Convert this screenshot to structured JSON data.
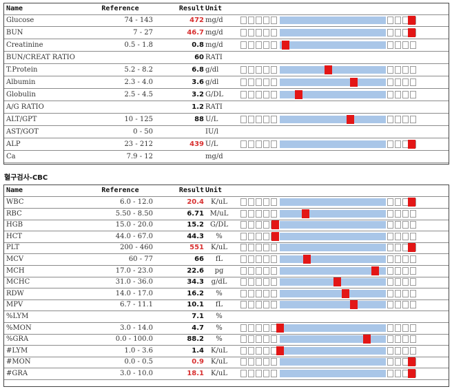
{
  "headers": {
    "name": "Name",
    "reference": "Reference",
    "result": "Result",
    "unit": "Unit"
  },
  "chemistry": {
    "rows": [
      {
        "name": "Glucose",
        "reference": "74 - 143",
        "result": "472",
        "unit": "mg/d",
        "flag": "high",
        "level": 1.0
      },
      {
        "name": "BUN",
        "reference": "7 - 27",
        "result": "46.7",
        "unit": "mg/d",
        "flag": "high",
        "level": 1.0
      },
      {
        "name": "Creatinine",
        "reference": "0.5 - 1.8",
        "result": "0.8",
        "unit": "mg/d",
        "flag": "normal",
        "level": 0.09
      },
      {
        "name": "BUN/CREAT RATIO",
        "reference": "",
        "result": "60",
        "unit": "RATI",
        "flag": "normal",
        "level": null
      },
      {
        "name": "T.Protein",
        "reference": "5.2 - 8.2",
        "result": "6.8",
        "unit": "g/dl",
        "flag": "normal",
        "level": 0.45
      },
      {
        "name": "Albumin",
        "reference": "2.3 - 4.0",
        "result": "3.6",
        "unit": "g/dl",
        "flag": "normal",
        "level": 0.67
      },
      {
        "name": "Globulin",
        "reference": "2.5 - 4.5",
        "result": "3.2",
        "unit": "G/DL",
        "flag": "normal",
        "level": 0.2
      },
      {
        "name": "A/G RATIO",
        "reference": "",
        "result": "1.2",
        "unit": "RATI",
        "flag": "normal",
        "level": null
      },
      {
        "name": "ALT/GPT",
        "reference": "10 - 125",
        "result": "88",
        "unit": "U/L",
        "flag": "normal",
        "level": 0.64
      },
      {
        "name": "AST/GOT",
        "reference": "0 - 50",
        "result": "",
        "unit": "IU/l",
        "flag": "normal",
        "level": null
      },
      {
        "name": "ALP",
        "reference": "23 - 212",
        "result": "439",
        "unit": "U/L",
        "flag": "high",
        "level": 1.0
      },
      {
        "name": "Ca",
        "reference": "7.9 - 12",
        "result": "",
        "unit": "mg/d",
        "flag": "normal",
        "level": null
      }
    ]
  },
  "cbc": {
    "title": "혈구검사-CBC",
    "rows": [
      {
        "name": "WBC",
        "reference": "6.0 - 12.0",
        "result": "20.4",
        "unit": "K/uL",
        "flag": "high",
        "level": 1.0
      },
      {
        "name": "RBC",
        "reference": "5.50 - 8.50",
        "result": "6.71",
        "unit": "M/uL",
        "flag": "normal",
        "level": 0.26
      },
      {
        "name": "HGB",
        "reference": "15.0 - 20.0",
        "result": "15.2",
        "unit": "G/DL",
        "flag": "normal",
        "level": 0.0
      },
      {
        "name": "HCT",
        "reference": "44.0 - 67.0",
        "result": "44.3",
        "unit": "%",
        "flag": "normal",
        "level": 0.0
      },
      {
        "name": "PLT",
        "reference": "200 - 460",
        "result": "551",
        "unit": "K/uL",
        "flag": "high",
        "level": 1.0
      },
      {
        "name": "MCV",
        "reference": "60 - 77",
        "result": "66",
        "unit": "fL",
        "flag": "normal",
        "level": 0.27
      },
      {
        "name": "MCH",
        "reference": "17.0 - 23.0",
        "result": "22.6",
        "unit": "pg",
        "flag": "normal",
        "level": 0.85
      },
      {
        "name": "MCHC",
        "reference": "31.0 - 36.0",
        "result": "34.3",
        "unit": "g/dL",
        "flag": "normal",
        "level": 0.53
      },
      {
        "name": "RDW",
        "reference": "14.0 - 17.0",
        "result": "16.2",
        "unit": "%",
        "flag": "normal",
        "level": 0.6
      },
      {
        "name": "MPV",
        "reference": "6.7 - 11.1",
        "result": "10.1",
        "unit": "fL",
        "flag": "normal",
        "level": 0.67
      },
      {
        "name": "%LYM",
        "reference": "",
        "result": "7.1",
        "unit": "%",
        "flag": "normal",
        "level": null
      },
      {
        "name": "%MON",
        "reference": "3.0 - 14.0",
        "result": "4.7",
        "unit": "%",
        "flag": "normal",
        "level": 0.04
      },
      {
        "name": "%GRA",
        "reference": "0.0 - 100.0",
        "result": "88.2",
        "unit": "%",
        "flag": "normal",
        "level": 0.78
      },
      {
        "name": "#LYM",
        "reference": "1.0 - 3.6",
        "result": "1.4",
        "unit": "K/uL",
        "flag": "normal",
        "level": 0.04
      },
      {
        "name": "#MON",
        "reference": "0.0 - 0.5",
        "result": "0.9",
        "unit": "K/uL",
        "flag": "high",
        "level": 1.0
      },
      {
        "name": "#GRA",
        "reference": "3.0 - 10.0",
        "result": "18.1",
        "unit": "K/uL",
        "flag": "high",
        "level": 1.0
      }
    ]
  },
  "colors": {
    "high": "#d83030",
    "marker": "#e31616",
    "range_fill": "#a9c6e8",
    "box_border": "#9a9a9a"
  }
}
